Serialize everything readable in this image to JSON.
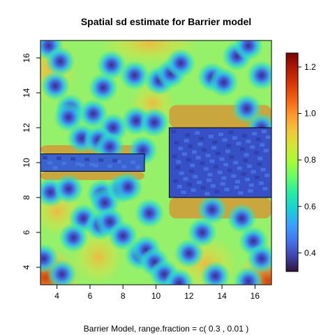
{
  "chart_data": {
    "type": "heatmap",
    "title": "Spatial sd estimate for Barrier model",
    "subtitle": "Barrier Model, range.fraction = c( 0.3 ,  0.01 )",
    "xlim": [
      3,
      17
    ],
    "ylim": [
      3,
      17
    ],
    "x_ticks": [
      "4",
      "6",
      "8",
      "10",
      "12",
      "14",
      "16"
    ],
    "y_ticks": [
      "4",
      "6",
      "8",
      "10",
      "12",
      "14",
      "16"
    ],
    "colorbar": {
      "range": [
        0.32,
        1.26
      ],
      "ticks": [
        "0.4",
        "0.6",
        "0.8",
        "1.0",
        "1.2"
      ],
      "palette": [
        "#30123b",
        "#4145ab",
        "#4675ed",
        "#39a2fc",
        "#1bcfd4",
        "#24eca6",
        "#61fc6c",
        "#a4fc3b",
        "#d1e834",
        "#f3c63a",
        "#fe9b2d",
        "#f36315",
        "#d93806",
        "#b11901",
        "#7a0403"
      ]
    },
    "barriers": [
      {
        "x": [
          3.0,
          9.3
        ],
        "y": [
          9.5,
          10.5
        ]
      },
      {
        "x": [
          10.8,
          17.0
        ],
        "y": [
          8.0,
          12.0
        ]
      }
    ],
    "low_sd_points": [
      [
        3.5,
        16.7
      ],
      [
        4.2,
        15.8
      ],
      [
        3.9,
        14.4
      ],
      [
        4.8,
        13.1
      ],
      [
        4.7,
        12.6
      ],
      [
        6.2,
        12.8
      ],
      [
        6.8,
        14.3
      ],
      [
        7.3,
        15.6
      ],
      [
        8.7,
        15.0
      ],
      [
        8.8,
        12.4
      ],
      [
        9.9,
        12.3
      ],
      [
        7.4,
        12.0
      ],
      [
        5.5,
        11.4
      ],
      [
        6.5,
        11.3
      ],
      [
        7.2,
        10.9
      ],
      [
        9.2,
        10.7
      ],
      [
        10.2,
        14.7
      ],
      [
        10.9,
        15.1
      ],
      [
        11.5,
        15.7
      ],
      [
        13.4,
        14.9
      ],
      [
        14.1,
        14.6
      ],
      [
        14.9,
        16.1
      ],
      [
        15.6,
        16.7
      ],
      [
        16.4,
        15.0
      ],
      [
        15.5,
        13.1
      ],
      [
        16.4,
        12.0
      ],
      [
        3.6,
        8.3
      ],
      [
        4.7,
        8.5
      ],
      [
        6.7,
        8.2
      ],
      [
        6.9,
        7.7
      ],
      [
        7.9,
        8.5
      ],
      [
        8.3,
        8.6
      ],
      [
        5.6,
        6.8
      ],
      [
        6.6,
        6.4
      ],
      [
        7.2,
        6.6
      ],
      [
        8.0,
        5.8
      ],
      [
        5.0,
        5.7
      ],
      [
        4.3,
        3.6
      ],
      [
        3.2,
        4.5
      ],
      [
        9.0,
        4.7
      ],
      [
        9.4,
        5.0
      ],
      [
        9.9,
        4.3
      ],
      [
        10.5,
        3.6
      ],
      [
        11.4,
        3.1
      ],
      [
        12.0,
        4.8
      ],
      [
        12.8,
        6.0
      ],
      [
        13.4,
        7.3
      ],
      [
        15.2,
        6.8
      ],
      [
        15.9,
        5.5
      ],
      [
        16.4,
        4.5
      ],
      [
        13.6,
        3.5
      ],
      [
        15.6,
        3.2
      ],
      [
        9.6,
        7.1
      ]
    ]
  }
}
